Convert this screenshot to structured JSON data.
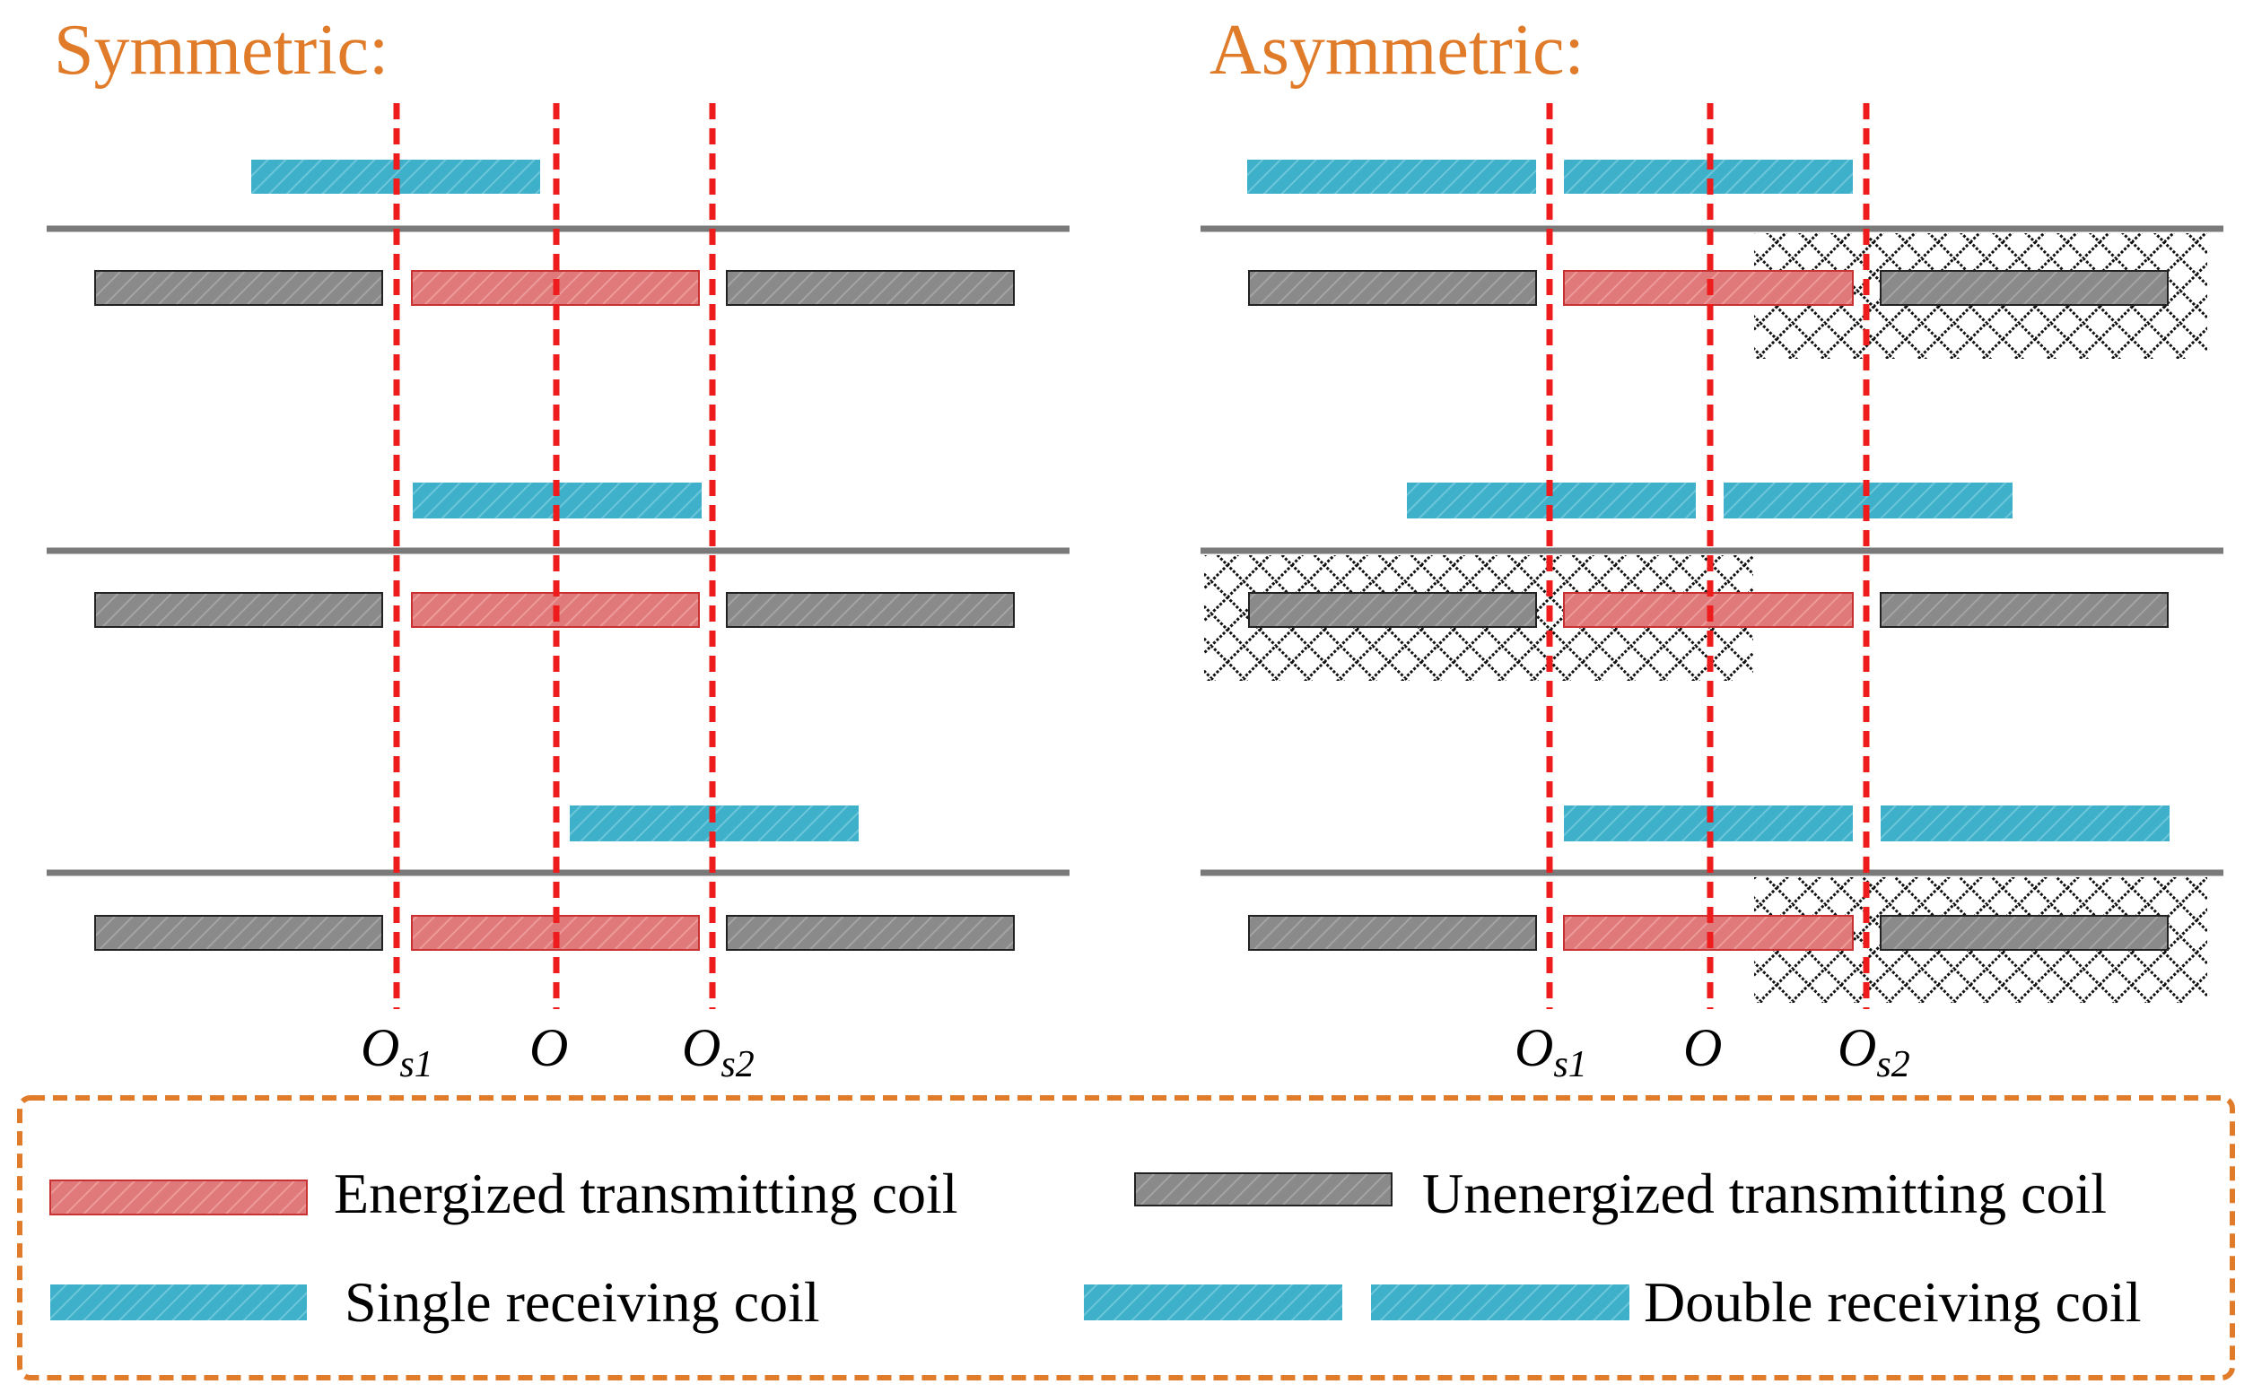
{
  "colors": {
    "energized": "#e07a7a",
    "energized_border": "#c83232",
    "unenergized": "#8c8c8c",
    "unenergized_border": "#222222",
    "receiving": "#3fb3cc",
    "track": "#7a7a7a",
    "dashed_line": "#ee1c1c",
    "title": "#e07b2a",
    "legend_border": "#e07b2a"
  },
  "panels": {
    "symmetric": {
      "title": "Symmetric:",
      "axis_labels": {
        "os1_main": "O",
        "os1_sub": "s1",
        "o_main": "O",
        "os2_main": "O",
        "os2_sub": "s2"
      }
    },
    "asymmetric": {
      "title": "Asymmetric:",
      "axis_labels": {
        "os1_main": "O",
        "os1_sub": "s1",
        "o_main": "O",
        "os2_main": "O",
        "os2_sub": "s2"
      }
    }
  },
  "legend": {
    "energized": "Energized transmitting coil",
    "unenergized": "Unenergized transmitting coil",
    "single": "Single receiving coil",
    "double": "Double receiving coil"
  }
}
